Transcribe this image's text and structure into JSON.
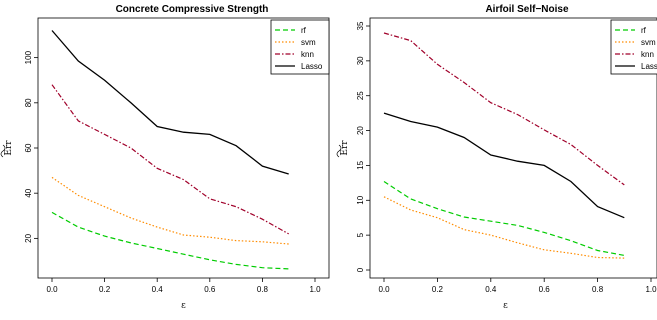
{
  "chart_data": [
    {
      "type": "line",
      "title": "Concrete Compressive Strength",
      "xlabel": "ε",
      "ylabel": "Err (with tilde)",
      "x": [
        0,
        0.1,
        0.2,
        0.3,
        0.4,
        0.5,
        0.6,
        0.7,
        0.8,
        0.9
      ],
      "xlim": [
        0,
        1.0
      ],
      "ylim": [
        6,
        114
      ],
      "xticks": [
        "0.0",
        "0.2",
        "0.4",
        "0.6",
        "0.8",
        "1.0"
      ],
      "yticks": [
        "20",
        "40",
        "60",
        "80",
        "100"
      ],
      "legend_position": "top-right",
      "series": [
        {
          "name": "rf",
          "color": "#00cc00",
          "dash": "dashed",
          "values": [
            31.5,
            25,
            21,
            18,
            15.5,
            13,
            10.5,
            8.5,
            7,
            6.5
          ]
        },
        {
          "name": "svm",
          "color": "#ff8c00",
          "dash": "dotted",
          "values": [
            47,
            39,
            34,
            29,
            25,
            21.5,
            20.5,
            19,
            18.5,
            17.5
          ]
        },
        {
          "name": "knn",
          "color": "#a0002a",
          "dash": "dashdot",
          "values": [
            88,
            72,
            66,
            60,
            51,
            46,
            37.5,
            34,
            28.5,
            22
          ]
        },
        {
          "name": "Lasso",
          "color": "#000000",
          "dash": "solid",
          "values": [
            112,
            98.5,
            90,
            80,
            69.5,
            67,
            66,
            61,
            52,
            48.5
          ]
        }
      ]
    },
    {
      "type": "line",
      "title": "Airfoil Self−Noise",
      "xlabel": "ε",
      "ylabel": "Err (with tilde)",
      "x": [
        0,
        0.1,
        0.2,
        0.3,
        0.4,
        0.5,
        0.6,
        0.7,
        0.8,
        0.9
      ],
      "xlim": [
        0,
        1.0
      ],
      "ylim": [
        0,
        35
      ],
      "xticks": [
        "0.0",
        "0.2",
        "0.4",
        "0.6",
        "0.8",
        "1.0"
      ],
      "yticks": [
        "0",
        "5",
        "10",
        "15",
        "20",
        "25",
        "30",
        "35"
      ],
      "legend_position": "top-right",
      "series": [
        {
          "name": "rf",
          "color": "#00cc00",
          "dash": "dashed",
          "values": [
            12.7,
            10.2,
            8.8,
            7.6,
            7,
            6.4,
            5.4,
            4.2,
            2.8,
            2.1
          ]
        },
        {
          "name": "svm",
          "color": "#ff8c00",
          "dash": "dotted",
          "values": [
            10.5,
            8.6,
            7.5,
            5.8,
            5,
            3.9,
            2.9,
            2.4,
            1.8,
            1.7
          ]
        },
        {
          "name": "knn",
          "color": "#a0002a",
          "dash": "dashdot",
          "values": [
            34,
            32.9,
            29.5,
            26.9,
            24,
            22.3,
            20.1,
            18,
            15,
            12.2
          ]
        },
        {
          "name": "Lasso",
          "color": "#000000",
          "dash": "solid",
          "values": [
            22.5,
            21.3,
            20.5,
            19,
            16.5,
            15.6,
            15,
            12.7,
            9.1,
            7.5
          ]
        }
      ]
    }
  ]
}
